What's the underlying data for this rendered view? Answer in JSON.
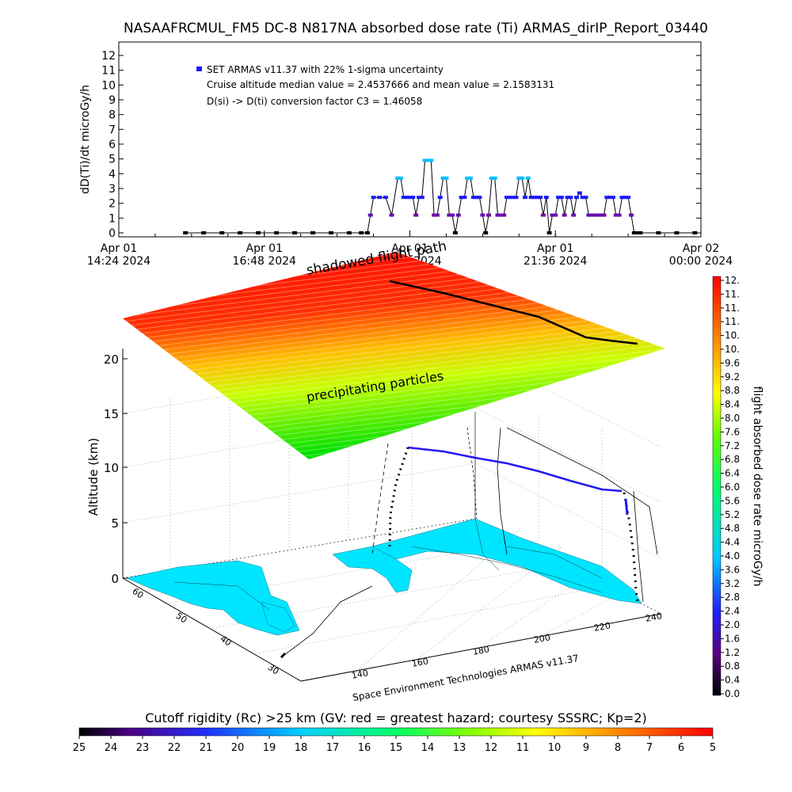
{
  "title": "NASAAFRCMUL_FM5 DC-8   N817NA absorbed dose rate (Ti) ARMAS_dirIP_Report_03440",
  "colors": {
    "series": "#1a1aff",
    "series_low": "#6a0dad",
    "series_high": "#00bfff",
    "track": "#000000",
    "ground": "#00e5ff"
  },
  "chart_data": [
    {
      "type": "scatter",
      "ylabel": "dD(Ti)/dt microGy/h",
      "ylim": [
        0,
        12
      ],
      "yticks": [
        "0",
        "1",
        "2",
        "3",
        "4",
        "5",
        "6",
        "7",
        "8",
        "9",
        "10",
        "11",
        "12"
      ],
      "xlim_hours": [
        14.4,
        24.0
      ],
      "xticks": [
        {
          "hour": 14.4,
          "line1": "Apr 01",
          "line2": "14:24 2024"
        },
        {
          "hour": 16.8,
          "line1": "Apr 01",
          "line2": "16:48 2024"
        },
        {
          "hour": 19.2,
          "line1": "Apr 01",
          "line2": "19:12 2024"
        },
        {
          "hour": 21.6,
          "line1": "Apr 01",
          "line2": "21:36 2024"
        },
        {
          "hour": 24.0,
          "line1": "Apr 02",
          "line2": "00:00 2024"
        }
      ],
      "legend": {
        "series": "SET ARMAS v11.37 with 22% 1-sigma uncertainty",
        "note1": "Cruise altitude median value = 2.4537666 and mean value = 2.1583131",
        "note2": "D(si) -> D(ti) conversion factor C3 = 1.46058"
      },
      "series": [
        {
          "name": "SET ARMAS v11.37 with 22% 1-sigma uncertainty",
          "x": [
            15.5,
            15.8,
            16.1,
            16.4,
            16.7,
            17.0,
            17.3,
            17.6,
            17.9,
            18.2,
            18.4,
            18.5,
            18.55,
            18.6,
            18.7,
            18.8,
            18.9,
            19.0,
            19.05,
            19.1,
            19.15,
            19.2,
            19.25,
            19.3,
            19.35,
            19.4,
            19.45,
            19.5,
            19.55,
            19.6,
            19.65,
            19.7,
            19.75,
            19.8,
            19.85,
            19.9,
            19.95,
            20.0,
            20.05,
            20.1,
            20.15,
            20.2,
            20.25,
            20.3,
            20.35,
            20.4,
            20.45,
            20.5,
            20.55,
            20.6,
            20.65,
            20.7,
            20.75,
            20.8,
            20.85,
            20.9,
            20.95,
            21.0,
            21.05,
            21.1,
            21.15,
            21.2,
            21.25,
            21.3,
            21.35,
            21.4,
            21.45,
            21.5,
            21.55,
            21.6,
            21.65,
            21.7,
            21.75,
            21.8,
            21.85,
            21.9,
            21.95,
            22.0,
            22.05,
            22.1,
            22.15,
            22.2,
            22.25,
            22.3,
            22.35,
            22.4,
            22.45,
            22.5,
            22.55,
            22.6,
            22.65,
            22.7,
            22.75,
            22.8,
            22.85,
            22.9,
            22.95,
            23.0,
            23.3,
            23.6,
            23.9
          ],
          "y": [
            0,
            0,
            0,
            0,
            0,
            0,
            0,
            0,
            0,
            0,
            0,
            0,
            1.2,
            2.4,
            2.4,
            2.4,
            1.2,
            3.7,
            3.7,
            2.4,
            2.4,
            2.4,
            2.4,
            1.2,
            2.4,
            2.4,
            4.9,
            4.9,
            4.9,
            1.2,
            1.2,
            2.4,
            3.7,
            3.7,
            1.2,
            1.2,
            0,
            1.2,
            2.4,
            2.4,
            3.7,
            3.7,
            2.4,
            2.4,
            2.4,
            1.2,
            0,
            1.2,
            3.7,
            3.7,
            1.2,
            1.2,
            1.2,
            2.4,
            2.4,
            2.4,
            2.4,
            3.7,
            3.7,
            2.4,
            3.7,
            2.4,
            2.4,
            2.4,
            2.4,
            1.2,
            2.4,
            0,
            1.2,
            1.2,
            2.4,
            2.4,
            1.2,
            2.4,
            2.4,
            1.2,
            2.4,
            2.7,
            2.4,
            2.4,
            1.2,
            1.2,
            1.2,
            1.2,
            1.2,
            1.2,
            2.4,
            2.4,
            2.4,
            1.2,
            1.2,
            2.4,
            2.4,
            2.4,
            1.2,
            0,
            0,
            0,
            0,
            0,
            0
          ]
        }
      ]
    },
    {
      "type": "3d-trajectory",
      "zlabel": "Altitude (km)",
      "zticks": [
        "0",
        "5",
        "10",
        "15",
        "20"
      ],
      "lon_ticks": [
        "140",
        "160",
        "180",
        "200",
        "220",
        "240"
      ],
      "lat_ticks": [
        "30",
        "40",
        "50",
        "60"
      ],
      "annotations": {
        "shadowed": "shadowed flight path",
        "precip": "precipitating particles",
        "credit": "Space Environment Technologies ARMAS v11.37"
      }
    },
    {
      "type": "colorbar",
      "orientation": "vertical",
      "label": "flight absorbed dose rate microGy/h",
      "ticks": [
        "0.0",
        "0.4",
        "0.8",
        "1.2",
        "1.6",
        "2.0",
        "2.4",
        "2.8",
        "3.2",
        "3.6",
        "4.0",
        "4.4",
        "4.8",
        "5.2",
        "5.6",
        "6.0",
        "6.4",
        "6.8",
        "7.2",
        "7.6",
        "8.0",
        "8.4",
        "8.8",
        "9.2",
        "9.6",
        "10.",
        "10.",
        "11.",
        "11.",
        "11.",
        "12."
      ],
      "range": [
        0,
        12
      ]
    },
    {
      "type": "colorbar",
      "orientation": "horizontal",
      "label": "Cutoff rigidity (Rc) >25 km (GV: red = greatest hazard; courtesy SSSRC; Kp=2)",
      "ticks": [
        "25",
        "24",
        "23",
        "22",
        "21",
        "20",
        "19",
        "18",
        "17",
        "16",
        "15",
        "14",
        "13",
        "12",
        "11",
        "10",
        "9",
        "8",
        "7",
        "6",
        "5"
      ],
      "range": [
        25,
        5
      ]
    }
  ]
}
